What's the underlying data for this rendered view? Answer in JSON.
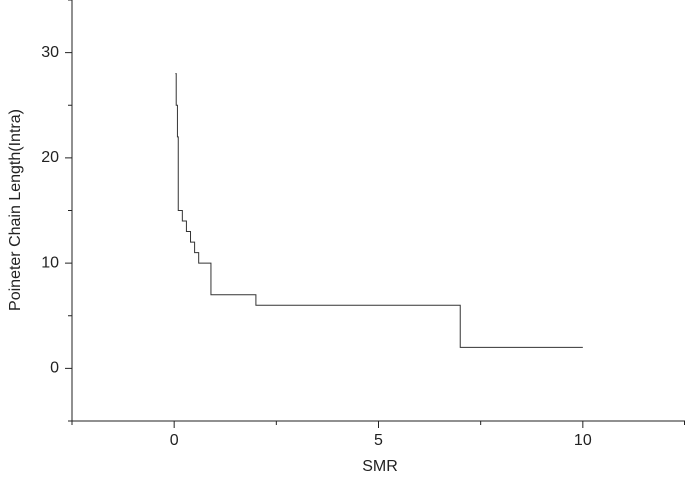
{
  "chart_data": {
    "type": "line",
    "drawstyle": "steps-post",
    "x_label": "SMR",
    "y_label": "Poineter Chain Length(Intra)",
    "x": [
      0.03,
      0.05,
      0.08,
      0.1,
      0.2,
      0.3,
      0.4,
      0.5,
      0.6,
      0.9,
      2,
      7,
      10
    ],
    "series": [
      {
        "color": "#333333",
        "values": [
          28,
          25,
          22,
          15,
          14,
          13,
          12,
          11,
          10,
          7,
          6,
          2,
          2
        ]
      }
    ],
    "xlim": [
      -2.5,
      12.5
    ],
    "xticks": [
      0,
      5,
      10
    ],
    "xminorticks": [
      -2.5,
      2.5,
      7.5,
      12.5
    ],
    "ylim": [
      -5,
      35
    ],
    "yticks": [
      0,
      10,
      20,
      30
    ],
    "yminorticks": [
      -5,
      5,
      15,
      25,
      35
    ],
    "grid": false
  }
}
